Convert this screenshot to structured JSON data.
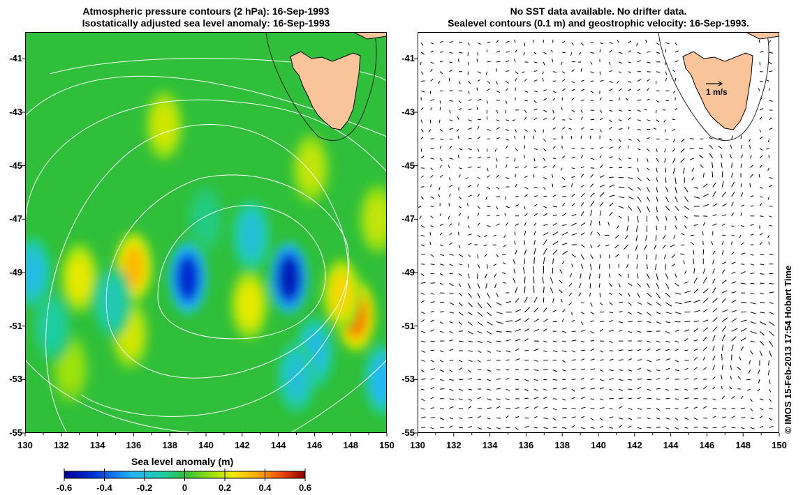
{
  "left_panel": {
    "title_line1": "Atmospheric pressure contours (2 hPa): 16-Sep-1993",
    "title_line2": "Isostatically adjusted sea level anomaly: 16-Sep-1993"
  },
  "right_panel": {
    "title_line1": "No SST data available.  No drifter data.",
    "title_line2": "Sealevel contours (0.1 m) and geostrophic velocity: 16-Sep-1993.",
    "velocity_scale_label": "1 m/s"
  },
  "axes": {
    "lon_ticks": [
      "130",
      "132",
      "134",
      "136",
      "138",
      "140",
      "142",
      "144",
      "146",
      "148",
      "150"
    ],
    "lat_ticks": [
      "-41",
      "-43",
      "-45",
      "-47",
      "-49",
      "-51",
      "-53",
      "-55"
    ],
    "lon_range": [
      130,
      150
    ],
    "lat_range": [
      -55,
      -40
    ]
  },
  "colorbar": {
    "title": "Sea level anomaly (m)",
    "ticks": [
      "-0.6",
      "-0.4",
      "-0.2",
      "0",
      "0.2",
      "0.4",
      "0.6"
    ],
    "range": [
      -0.6,
      0.6
    ]
  },
  "credit": "© IMOS 15-Feb-2013 17:54 Hobart Time",
  "colors": {
    "land": "#f9c49a",
    "contour_left": "#ffffff",
    "base_anomaly": "#2fbf3a"
  },
  "anomalies": [
    {
      "lon": 139.0,
      "lat": -49.2,
      "v": -0.5
    },
    {
      "lon": 144.6,
      "lat": -49.2,
      "v": -0.55
    },
    {
      "lon": 136.0,
      "lat": -48.8,
      "v": 0.35
    },
    {
      "lon": 148.3,
      "lat": -50.6,
      "v": 0.45
    },
    {
      "lon": 147.5,
      "lat": -49.8,
      "v": 0.3
    },
    {
      "lon": 133.0,
      "lat": -49.2,
      "v": 0.25
    },
    {
      "lon": 142.4,
      "lat": -50.2,
      "v": 0.25
    },
    {
      "lon": 135.8,
      "lat": -51.3,
      "v": 0.22
    },
    {
      "lon": 132.5,
      "lat": -52.6,
      "v": 0.15
    },
    {
      "lon": 145.8,
      "lat": -45.1,
      "v": 0.2
    },
    {
      "lon": 137.7,
      "lat": -43.5,
      "v": 0.22
    },
    {
      "lon": 149.5,
      "lat": -47.0,
      "v": 0.2
    },
    {
      "lon": 142.5,
      "lat": -47.6,
      "v": -0.2
    },
    {
      "lon": 146.0,
      "lat": -52.0,
      "v": -0.22
    },
    {
      "lon": 145.0,
      "lat": -52.9,
      "v": -0.2
    },
    {
      "lon": 130.4,
      "lat": -49.0,
      "v": -0.22
    },
    {
      "lon": 134.8,
      "lat": -50.1,
      "v": -0.15
    },
    {
      "lon": 131.5,
      "lat": -51.0,
      "v": -0.12
    },
    {
      "lon": 149.8,
      "lat": -53.0,
      "v": -0.25
    },
    {
      "lon": 140.0,
      "lat": -47.0,
      "v": -0.08
    }
  ]
}
